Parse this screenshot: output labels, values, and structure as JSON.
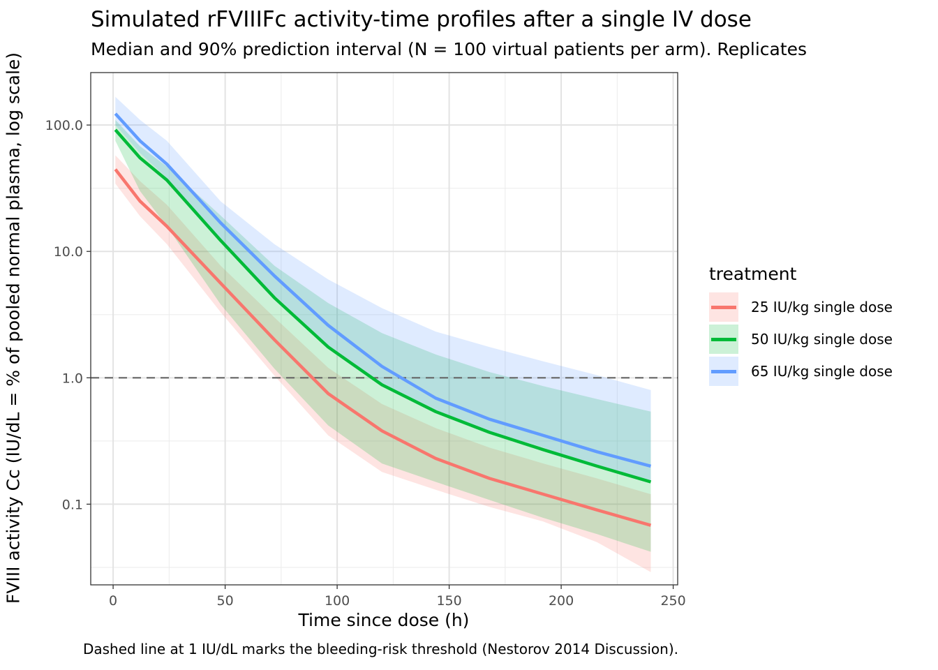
{
  "chart_data": {
    "type": "line",
    "title": "Simulated rFVIIIFc activity-time profiles after a single IV dose",
    "subtitle": "Median and 90% prediction interval (N = 100 virtual patients per arm). Replicates",
    "xlabel": "Time since dose (h)",
    "ylabel": "FVIII activity Cc (IU/dL = % of pooled normal plasma, log scale)",
    "caption": "Dashed line at 1 IU/dL marks the bleeding-risk threshold (Nestorov 2014 Discussion).",
    "x_scale": "linear",
    "y_scale": "log10",
    "xlim": [
      -10,
      252
    ],
    "ylim": [
      0.023,
      260
    ],
    "x_ticks": [
      0,
      50,
      100,
      150,
      200,
      250
    ],
    "x_tick_labels": [
      "0",
      "50",
      "100",
      "150",
      "200",
      "250"
    ],
    "y_ticks": [
      0.1,
      1,
      10,
      100
    ],
    "y_tick_labels": [
      "0.1",
      "1.0",
      "10.0",
      "100.0"
    ],
    "grid": true,
    "reference_line": {
      "y": 1,
      "style": "dashed",
      "color": "#666666"
    },
    "legend": {
      "title": "treatment",
      "position": "right"
    },
    "x": [
      1,
      12,
      24,
      48,
      72,
      96,
      120,
      144,
      168,
      192,
      216,
      240
    ],
    "series": [
      {
        "name": "25 IU/kg single dose",
        "color": "#F8766D",
        "fill": "#F8766D",
        "median": [
          44.6,
          25.0,
          15.8,
          5.6,
          2.0,
          0.75,
          0.38,
          0.23,
          0.16,
          0.12,
          0.09,
          0.068
        ],
        "lower": [
          34.4,
          19.0,
          11.4,
          3.3,
          1.04,
          0.35,
          0.18,
          0.13,
          0.095,
          0.073,
          0.05,
          0.029
        ],
        "upper": [
          57.6,
          36.0,
          23.4,
          7.7,
          3.0,
          1.2,
          0.62,
          0.4,
          0.28,
          0.21,
          0.16,
          0.12
        ]
      },
      {
        "name": "50 IU/kg single dose",
        "color": "#00BA38",
        "fill": "#00BA38",
        "median": [
          91.7,
          55.0,
          36.7,
          12.2,
          4.3,
          1.75,
          0.88,
          0.54,
          0.37,
          0.27,
          0.2,
          0.15
        ],
        "lower": [
          75.0,
          30.0,
          15.8,
          3.8,
          1.18,
          0.42,
          0.21,
          0.15,
          0.108,
          0.078,
          0.058,
          0.042
        ],
        "upper": [
          110.0,
          68.0,
          47.0,
          19.2,
          7.7,
          3.9,
          2.26,
          1.53,
          1.11,
          0.86,
          0.68,
          0.54
        ]
      },
      {
        "name": "65 IU/kg single dose",
        "color": "#619CFF",
        "fill": "#619CFF",
        "median": [
          123.0,
          75.0,
          49.0,
          16.8,
          6.4,
          2.6,
          1.23,
          0.69,
          0.47,
          0.35,
          0.26,
          0.2
        ],
        "lower": [
          100.0,
          60.0,
          38.0,
          12.0,
          4.5,
          1.8,
          0.9,
          0.55,
          0.38,
          0.28,
          0.2,
          0.15
        ],
        "upper": [
          167.0,
          110.0,
          75.0,
          24.9,
          11.4,
          6.0,
          3.56,
          2.32,
          1.75,
          1.35,
          1.05,
          0.8
        ]
      }
    ]
  }
}
